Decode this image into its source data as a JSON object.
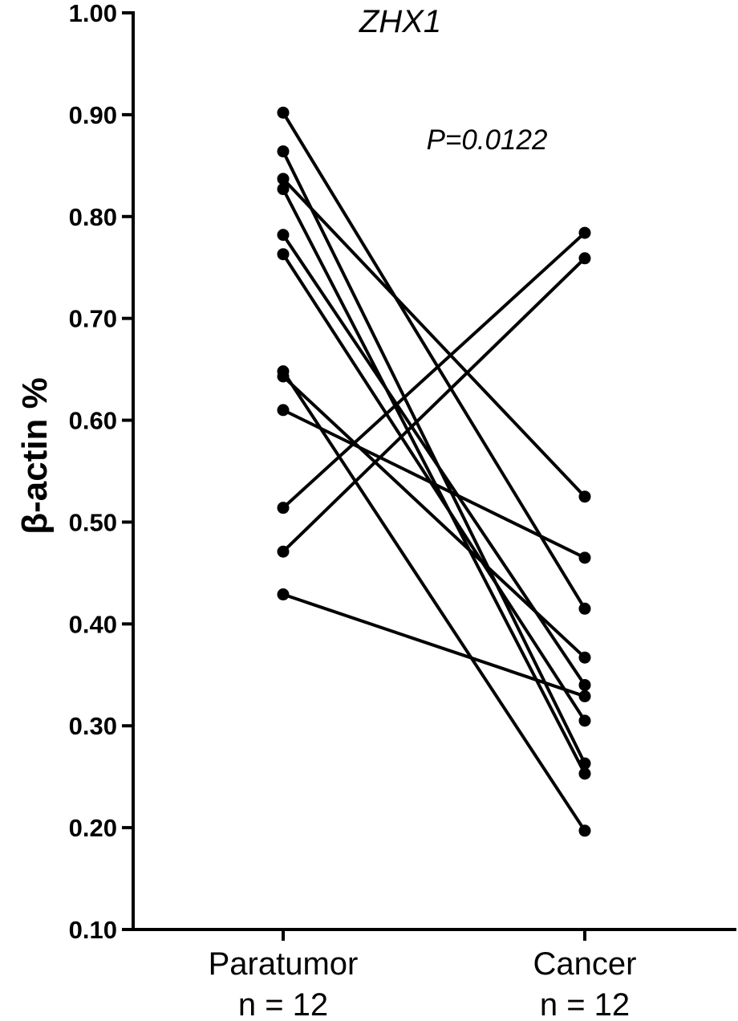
{
  "chart_data": {
    "type": "line",
    "title": "ZHX1",
    "ylabel": "β-actin %",
    "xlabel": "",
    "annotation": "P=0.0122",
    "categories": [
      {
        "name": "Paratumor",
        "n": "n = 12"
      },
      {
        "name": "Cancer",
        "n": "n = 12"
      }
    ],
    "ylim": [
      0.1,
      1.0
    ],
    "yticks": [
      "0.10",
      "0.20",
      "0.30",
      "0.40",
      "0.50",
      "0.60",
      "0.70",
      "0.80",
      "0.90",
      "1.00"
    ],
    "grid": false,
    "legend": "none",
    "pairs": [
      {
        "paratumor": 0.902,
        "cancer": 0.415
      },
      {
        "paratumor": 0.864,
        "cancer": 0.263
      },
      {
        "paratumor": 0.837,
        "cancer": 0.525
      },
      {
        "paratumor": 0.827,
        "cancer": 0.253
      },
      {
        "paratumor": 0.782,
        "cancer": 0.34
      },
      {
        "paratumor": 0.763,
        "cancer": 0.305
      },
      {
        "paratumor": 0.648,
        "cancer": 0.197
      },
      {
        "paratumor": 0.643,
        "cancer": 0.367
      },
      {
        "paratumor": 0.61,
        "cancer": 0.465
      },
      {
        "paratumor": 0.514,
        "cancer": 0.784
      },
      {
        "paratumor": 0.471,
        "cancer": 0.759
      },
      {
        "paratumor": 0.429,
        "cancer": 0.329
      }
    ],
    "colors": {
      "line": "#000000",
      "point": "#000000",
      "axis": "#000000"
    }
  }
}
